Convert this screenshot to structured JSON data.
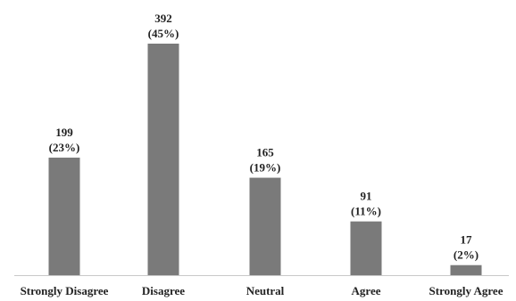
{
  "chart_data": {
    "type": "bar",
    "categories": [
      "Strongly Disagree",
      "Disagree",
      "Neutral",
      "Agree",
      "Strongly Agree"
    ],
    "values": [
      199,
      392,
      165,
      91,
      17
    ],
    "percent_labels": [
      "(23%)",
      "(45%)",
      "(19%)",
      "(11%)",
      "(2%)"
    ],
    "title": "",
    "xlabel": "",
    "ylabel": "",
    "ylim": [
      0,
      392
    ],
    "grid": false,
    "legend": "none",
    "colors": {
      "bar": "#7a7a7a",
      "axis": "#c8c8c8",
      "text": "#222222"
    }
  }
}
